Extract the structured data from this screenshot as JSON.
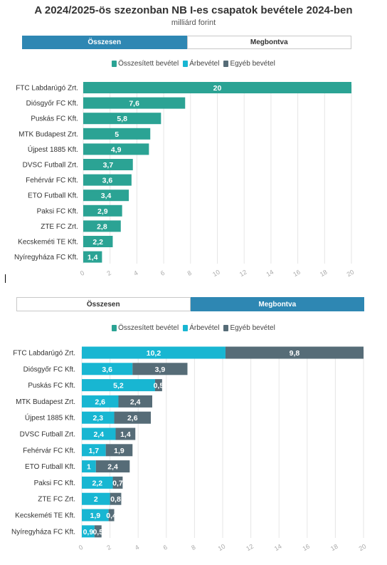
{
  "title": "A 2024/2025-ös szezonban NB I-es csapatok bevétele 2024-ben",
  "subtitle": "milliárd forint",
  "toggle": {
    "total_label": "Összesen",
    "split_label": "Megbontva"
  },
  "legend": [
    {
      "label": "Összesített bevétel",
      "color": "#2ba394"
    },
    {
      "label": "Árbevétel",
      "color": "#18b6d2"
    },
    {
      "label": "Egyéb bevétel",
      "color": "#566c77"
    }
  ],
  "chart_data": [
    {
      "type": "bar",
      "orientation": "horizontal",
      "categories": [
        "FTC Labdarúgó Zrt.",
        "Diósgyőr FC Kft.",
        "Puskás FC Kft.",
        "MTK Budapest Zrt.",
        "Újpest 1885 Kft.",
        "DVSC Futball Zrt.",
        "Fehérvár FC Kft.",
        "ETO Futball Kft.",
        "Paksi FC Kft.",
        "ZTE FC Zrt.",
        "Kecskeméti TE Kft.",
        "Nyíregyháza FC Kft."
      ],
      "series": [
        {
          "name": "Összesített bevétel",
          "values": [
            20,
            7.6,
            5.8,
            5,
            4.9,
            3.7,
            3.6,
            3.4,
            2.9,
            2.8,
            2.2,
            1.4
          ],
          "labels": [
            "20",
            "7,6",
            "5,8",
            "5",
            "4,9",
            "3,7",
            "3,6",
            "3,4",
            "2,9",
            "2,8",
            "2,2",
            "1,4"
          ]
        }
      ],
      "xlim": [
        0,
        20
      ],
      "xticks": [
        "0",
        "2",
        "4",
        "6",
        "8",
        "10",
        "12",
        "14",
        "16",
        "18",
        "20"
      ],
      "grid": true,
      "legend_position": "top"
    },
    {
      "type": "bar",
      "orientation": "horizontal",
      "stacked": true,
      "categories": [
        "FTC Labdarúgó Zrt.",
        "Diósgyőr FC Kft.",
        "Puskás FC Kft.",
        "MTK Budapest Zrt.",
        "Újpest 1885 Kft.",
        "DVSC Futball Zrt.",
        "Fehérvár FC Kft.",
        "ETO Futball Kft.",
        "Paksi FC Kft.",
        "ZTE FC Zrt.",
        "Kecskeméti TE Kft.",
        "Nyíregyháza FC Kft."
      ],
      "series": [
        {
          "name": "Árbevétel",
          "values": [
            10.2,
            3.6,
            5.2,
            2.6,
            2.3,
            2.4,
            1.7,
            1,
            2.2,
            2,
            1.9,
            0.9
          ],
          "labels": [
            "10,2",
            "3,6",
            "5,2",
            "2,6",
            "2,3",
            "2,4",
            "1,7",
            "1",
            "2,2",
            "2",
            "1,9",
            "0,9"
          ]
        },
        {
          "name": "Egyéb bevétel",
          "values": [
            9.8,
            3.9,
            0.5,
            2.4,
            2.6,
            1.4,
            1.9,
            2.4,
            0.7,
            0.8,
            0.4,
            0.5
          ],
          "labels": [
            "9,8",
            "3,9",
            "0,5",
            "2,4",
            "2,6",
            "1,4",
            "1,9",
            "2,4",
            "0,7",
            "0,8",
            "0,4",
            "0,5"
          ]
        }
      ],
      "xlim": [
        0,
        20
      ],
      "xticks": [
        "0",
        "2",
        "4",
        "6",
        "8",
        "10",
        "12",
        "14",
        "16",
        "18",
        "20"
      ],
      "grid": true,
      "legend_position": "top"
    }
  ]
}
